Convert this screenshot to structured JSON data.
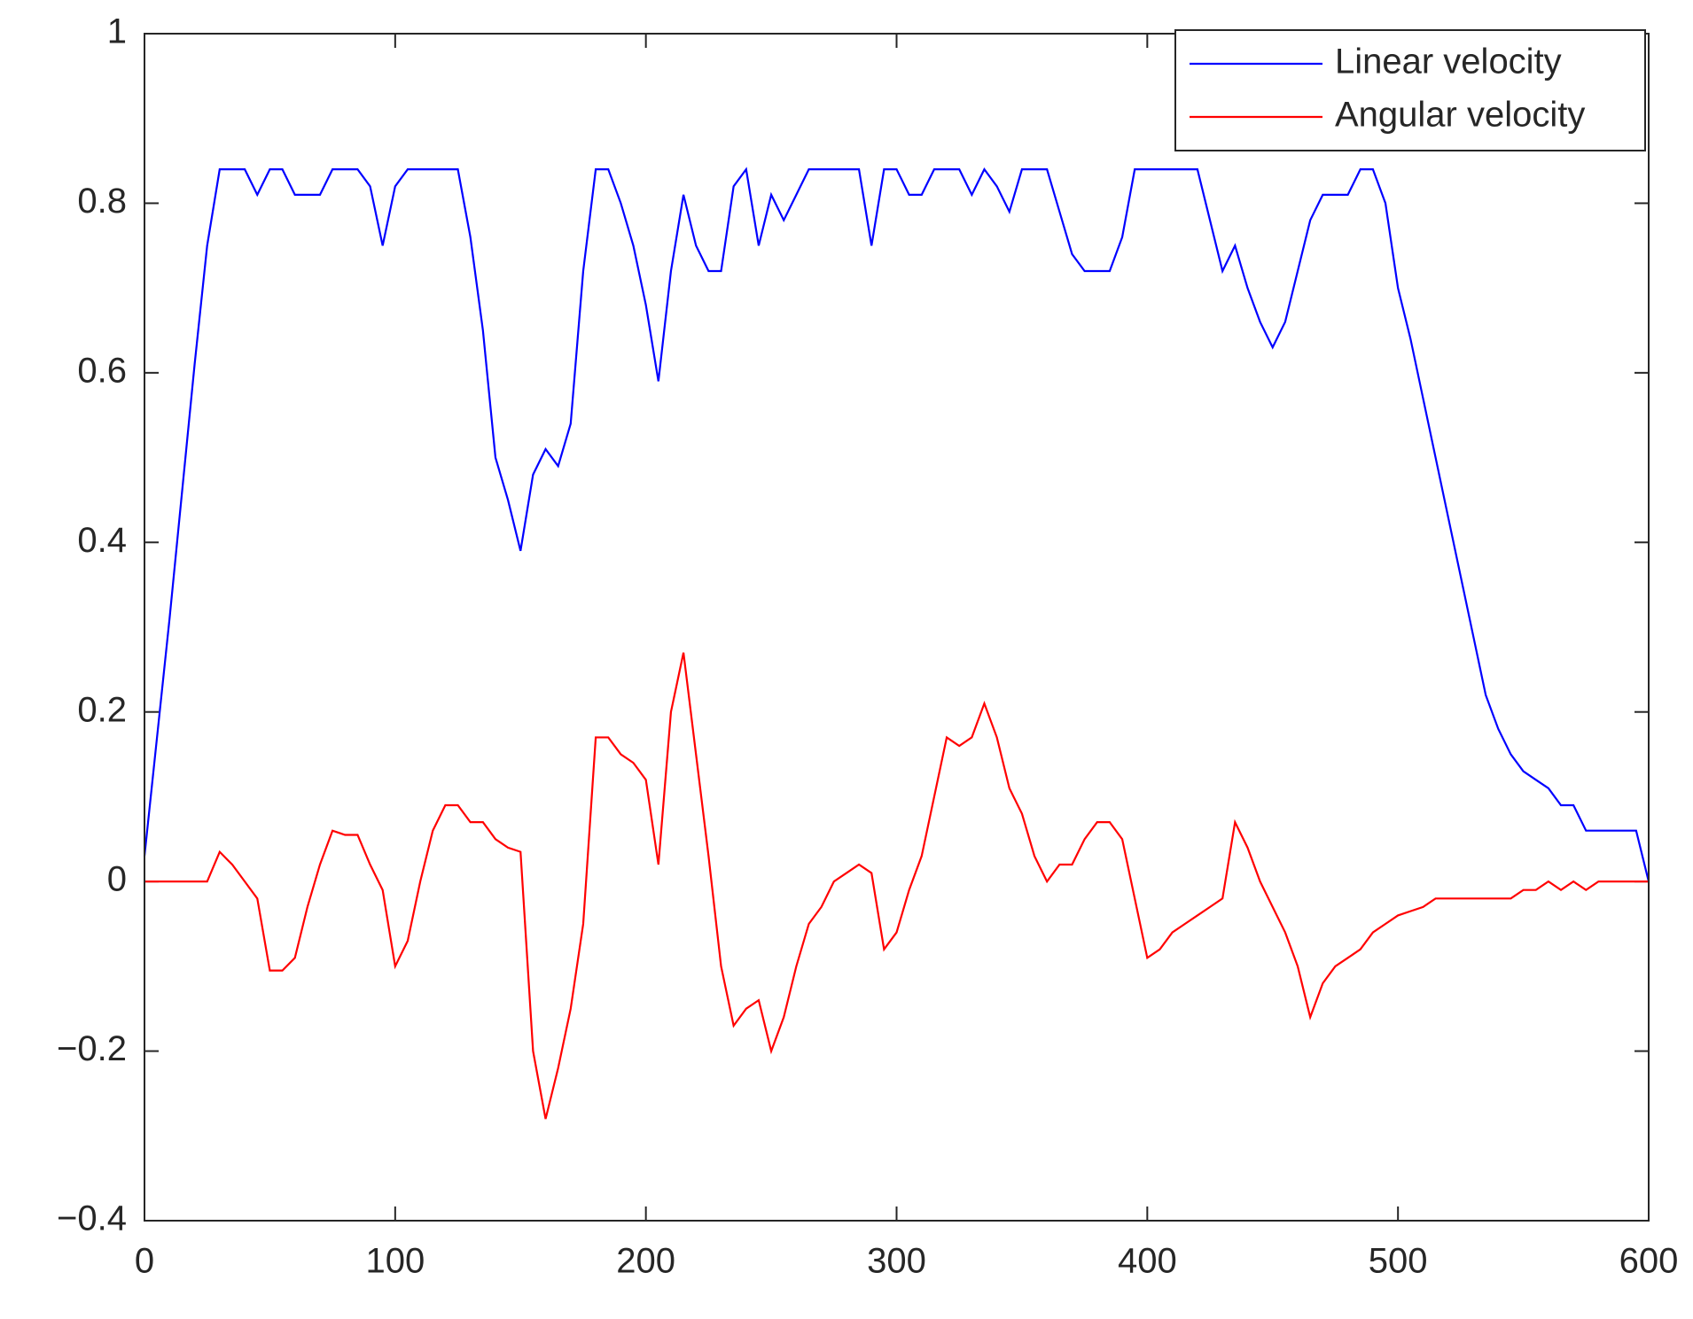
{
  "chart_data": {
    "type": "line",
    "x": [
      0,
      5,
      10,
      15,
      20,
      25,
      30,
      35,
      40,
      45,
      50,
      55,
      60,
      65,
      70,
      75,
      80,
      85,
      90,
      95,
      100,
      105,
      110,
      115,
      120,
      125,
      130,
      135,
      140,
      145,
      150,
      155,
      160,
      165,
      170,
      175,
      180,
      185,
      190,
      195,
      200,
      205,
      210,
      215,
      220,
      225,
      230,
      235,
      240,
      245,
      250,
      255,
      260,
      265,
      270,
      275,
      280,
      285,
      290,
      295,
      300,
      305,
      310,
      315,
      320,
      325,
      330,
      335,
      340,
      345,
      350,
      355,
      360,
      365,
      370,
      375,
      380,
      385,
      390,
      395,
      400,
      405,
      410,
      415,
      420,
      425,
      430,
      435,
      440,
      445,
      450,
      455,
      460,
      465,
      470,
      475,
      480,
      485,
      490,
      495,
      500,
      505,
      510,
      515,
      520,
      525,
      530,
      535,
      540,
      545,
      550,
      555,
      560,
      565,
      570,
      575,
      580,
      585,
      590,
      595,
      600
    ],
    "series": [
      {
        "name": "Linear velocity",
        "color": "#0000ff",
        "values": [
          0.03,
          0.17,
          0.31,
          0.46,
          0.61,
          0.75,
          0.84,
          0.84,
          0.84,
          0.81,
          0.84,
          0.84,
          0.81,
          0.81,
          0.81,
          0.84,
          0.84,
          0.84,
          0.82,
          0.75,
          0.82,
          0.84,
          0.84,
          0.84,
          0.84,
          0.84,
          0.76,
          0.65,
          0.5,
          0.45,
          0.39,
          0.48,
          0.51,
          0.49,
          0.54,
          0.72,
          0.84,
          0.84,
          0.8,
          0.75,
          0.68,
          0.59,
          0.72,
          0.81,
          0.75,
          0.72,
          0.72,
          0.82,
          0.84,
          0.75,
          0.81,
          0.78,
          0.81,
          0.84,
          0.84,
          0.84,
          0.84,
          0.84,
          0.75,
          0.84,
          0.84,
          0.81,
          0.81,
          0.84,
          0.84,
          0.84,
          0.81,
          0.84,
          0.82,
          0.79,
          0.84,
          0.84,
          0.84,
          0.79,
          0.74,
          0.72,
          0.72,
          0.72,
          0.76,
          0.84,
          0.84,
          0.84,
          0.84,
          0.84,
          0.84,
          0.78,
          0.72,
          0.75,
          0.7,
          0.66,
          0.63,
          0.66,
          0.72,
          0.78,
          0.81,
          0.81,
          0.81,
          0.84,
          0.84,
          0.8,
          0.7,
          0.64,
          0.57,
          0.5,
          0.43,
          0.36,
          0.29,
          0.22,
          0.18,
          0.15,
          0.13,
          0.12,
          0.11,
          0.09,
          0.09,
          0.06,
          0.06,
          0.06,
          0.06,
          0.06,
          0.0
        ]
      },
      {
        "name": "Angular velocity",
        "color": "#ff0000",
        "values": [
          0,
          0,
          0,
          0,
          0,
          0,
          0.035,
          0.02,
          0,
          -0.02,
          -0.105,
          -0.105,
          -0.09,
          -0.03,
          0.02,
          0.06,
          0.055,
          0.055,
          0.02,
          -0.01,
          -0.1,
          -0.07,
          0,
          0.06,
          0.09,
          0.09,
          0.07,
          0.07,
          0.05,
          0.04,
          0.035,
          -0.2,
          -0.28,
          -0.22,
          -0.15,
          -0.05,
          0.17,
          0.17,
          0.15,
          0.14,
          0.12,
          0.02,
          0.2,
          0.27,
          0.15,
          0.03,
          -0.1,
          -0.17,
          -0.15,
          -0.14,
          -0.2,
          -0.16,
          -0.1,
          -0.05,
          -0.03,
          0,
          0.01,
          0.02,
          0.01,
          -0.08,
          -0.06,
          -0.01,
          0.03,
          0.1,
          0.17,
          0.16,
          0.17,
          0.21,
          0.17,
          0.11,
          0.08,
          0.03,
          0,
          0.02,
          0.02,
          0.05,
          0.07,
          0.07,
          0.05,
          -0.02,
          -0.09,
          -0.08,
          -0.06,
          -0.05,
          -0.04,
          -0.03,
          -0.02,
          0.07,
          0.04,
          0.0,
          -0.03,
          -0.06,
          -0.1,
          -0.16,
          -0.12,
          -0.1,
          -0.09,
          -0.08,
          -0.06,
          -0.05,
          -0.04,
          -0.035,
          -0.03,
          -0.02,
          -0.02,
          -0.02,
          -0.02,
          -0.02,
          -0.02,
          -0.02,
          -0.01,
          -0.01,
          0,
          -0.01,
          0,
          -0.01,
          0,
          0,
          0,
          0,
          0
        ]
      }
    ],
    "xlim": [
      0,
      600
    ],
    "xticks": [
      0,
      100,
      200,
      300,
      400,
      500,
      600
    ],
    "ylim": [
      -0.4,
      1
    ],
    "yticks": [
      {
        "value": -0.4,
        "label": "−0.4"
      },
      {
        "value": -0.2,
        "label": "−0.2"
      },
      0,
      0.2,
      0.4,
      0.6,
      0.8,
      1
    ],
    "legend": "upper right"
  }
}
